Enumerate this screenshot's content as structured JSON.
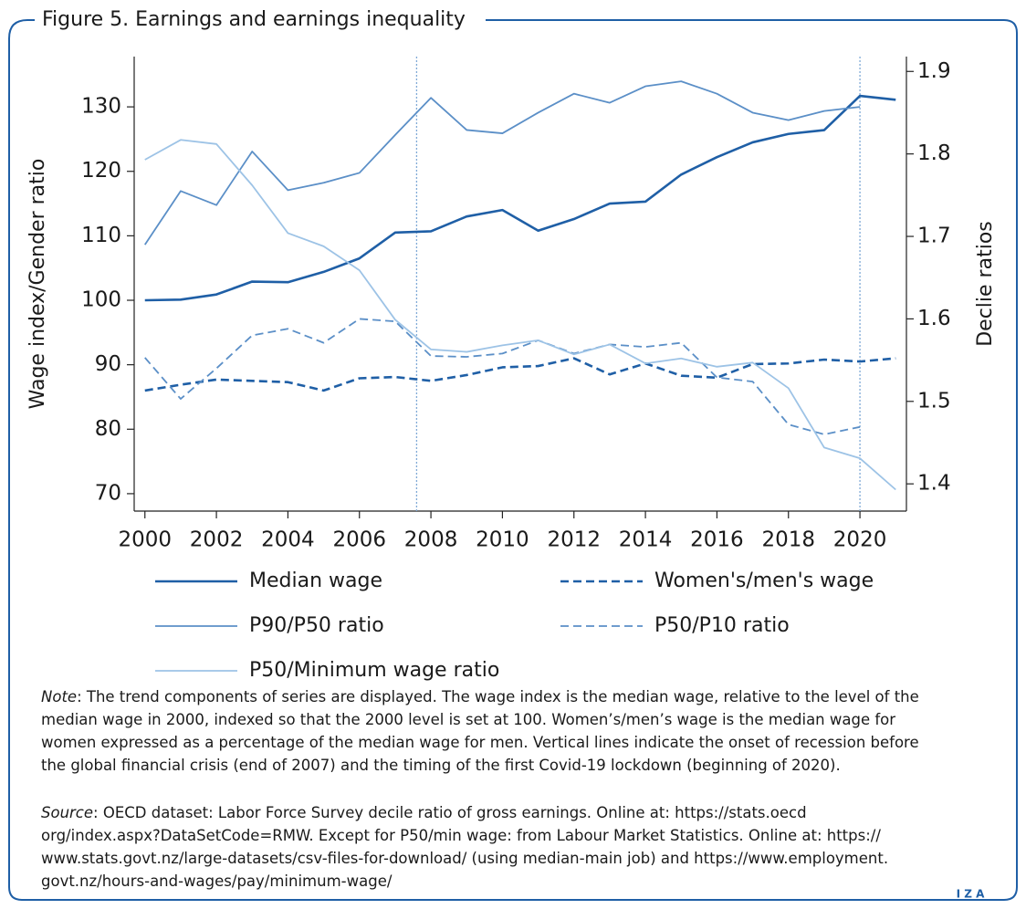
{
  "chart_data": {
    "type": "line",
    "title": "Figure 5. Earnings and earnings inequality",
    "y_label": "Wage index/Gender ratio",
    "y2_label": "Declie ratios",
    "x": [
      2000,
      2001,
      2002,
      2003,
      2004,
      2005,
      2006,
      2007,
      2008,
      2009,
      2010,
      2011,
      2012,
      2013,
      2014,
      2015,
      2016,
      2017,
      2018,
      2019,
      2020,
      2021
    ],
    "xlim": [
      1999.7,
      2021.3
    ],
    "xticks": [
      2000,
      2002,
      2004,
      2006,
      2008,
      2010,
      2012,
      2014,
      2016,
      2018,
      2020
    ],
    "ylim": [
      67.3,
      137.8
    ],
    "yticks": [
      70,
      80,
      90,
      100,
      110,
      120,
      130
    ],
    "y2lim": [
      1.367,
      1.918
    ],
    "y2ticks": [
      1.4,
      1.5,
      1.6,
      1.7,
      1.8,
      1.9
    ],
    "vlines": [
      2007.6,
      2020
    ],
    "vline_color": "#7fa9d6",
    "series": [
      {
        "name": "Median wage",
        "color": "#1f5fa6",
        "dashed": false,
        "linewidth": 2.6,
        "values": [
          100,
          100.1,
          100.9,
          102.9,
          102.8,
          104.4,
          106.5,
          110.5,
          110.7,
          113,
          114,
          110.8,
          112.6,
          115,
          115.3,
          119.5,
          122.2,
          124.5,
          125.8,
          126.4,
          131.7,
          131.1
        ]
      },
      {
        "name": "Women's/men's wage",
        "color": "#1f5fa6",
        "dashed": true,
        "linewidth": 2.6,
        "values": [
          86,
          86.9,
          87.7,
          87.5,
          87.3,
          86,
          87.9,
          88.1,
          87.5,
          88.4,
          89.6,
          89.8,
          91,
          88.5,
          90.2,
          88.3,
          88,
          90.1,
          90.2,
          90.8,
          90.5,
          91
        ]
      },
      {
        "name": "P90/P50 ratio",
        "color": "#5b8fc7",
        "dashed": false,
        "linewidth": 1.8,
        "axis": "y2",
        "values": [
          1.69,
          1.755,
          1.738,
          1.803,
          1.756,
          1.765,
          1.777,
          1.823,
          1.868,
          1.829,
          1.825,
          1.85,
          1.873,
          1.862,
          1.882,
          1.888,
          1.873,
          1.85,
          1.841,
          1.852,
          1.857,
          null
        ]
      },
      {
        "name": "P50/P10 ratio",
        "color": "#5b8fc7",
        "dashed": true,
        "linewidth": 1.8,
        "axis": "y2",
        "values": [
          1.553,
          1.503,
          1.54,
          1.58,
          1.588,
          1.571,
          1.6,
          1.597,
          1.555,
          1.554,
          1.558,
          1.574,
          1.558,
          1.569,
          1.566,
          1.571,
          1.529,
          1.524,
          1.472,
          1.46,
          1.469,
          null
        ]
      },
      {
        "name": "P50/Minimum wage ratio",
        "color": "#9dc3e6",
        "dashed": false,
        "linewidth": 1.8,
        "axis": "y2",
        "values": [
          1.793,
          1.817,
          1.812,
          1.762,
          1.704,
          1.688,
          1.659,
          1.599,
          1.563,
          1.56,
          1.568,
          1.574,
          1.557,
          1.569,
          1.546,
          1.552,
          1.542,
          1.547,
          1.516,
          1.444,
          1.431,
          1.393
        ]
      }
    ],
    "note_label": "Note",
    "note_lines": [
      ": The trend components of series are displayed. The wage index is the median wage, relative to the level of the",
      "median wage in 2000, indexed so that the 2000 level is set at 100. Women’s/men’s wage is the median wage for",
      "women expressed as a percentage of the median wage for men. Vertical lines indicate the onset of recession before",
      "the global financial crisis (end of 2007) and the timing of the first Covid-19 lockdown (beginning of 2020)."
    ],
    "source_label": "Source",
    "source_lines": [
      ": OECD dataset: Labor Force Survey decile ratio of gross earnings. Online at: https://stats.oecd",
      "org/index.aspx?DataSetCode=RMW. Except for P50/min wage: from Labour Market Statistics. Online at: https://",
      "www.stats.govt.nz/large-datasets/csv-files-for-download/ (using median-main job) and https://www.employment.",
      "govt.nz/hours-and-wages/pay/minimum-wage/"
    ],
    "logo": "I Z A"
  }
}
